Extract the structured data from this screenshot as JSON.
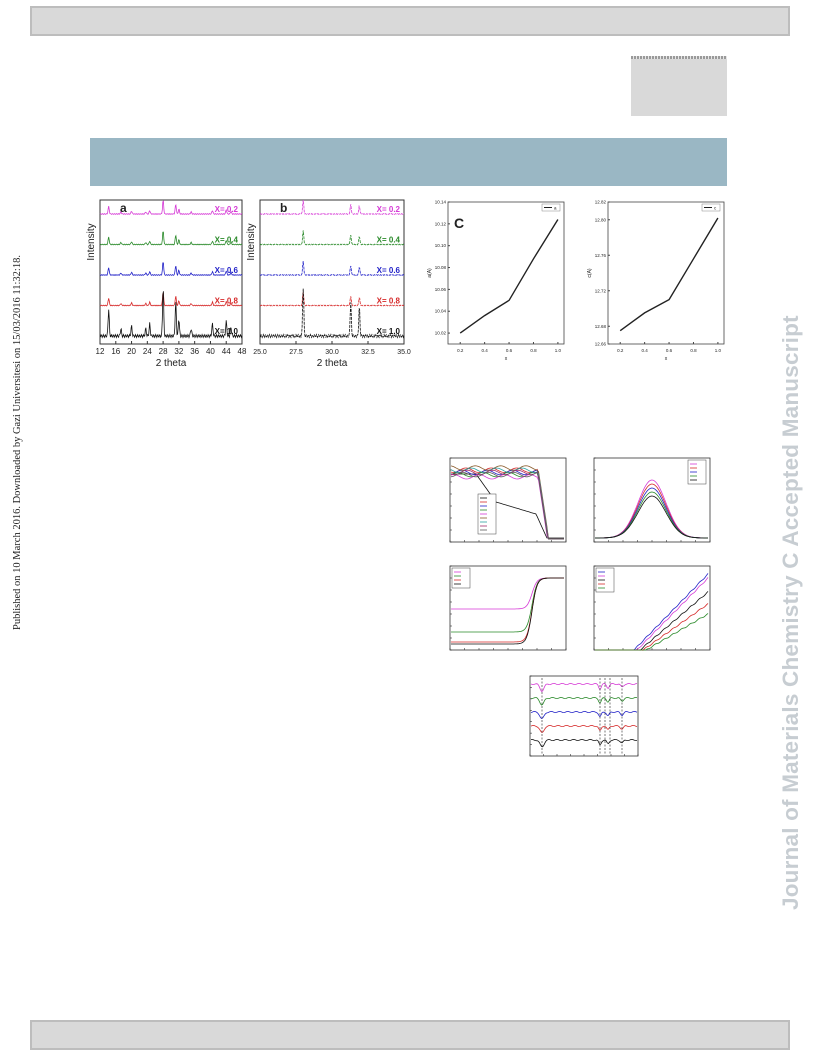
{
  "side_text": "Published on 10 March 2016. Downloaded by Gazi Universitesi on 15/03/2016 11:32:18.",
  "journal_watermark": "Journal of Materials Chemistry C Accepted Manuscript",
  "chart_data": [
    {
      "type": "line",
      "panel": "a",
      "xlabel": "2 theta",
      "ylabel": "Intensity",
      "xlim": [
        12,
        48
      ],
      "x_ticks": [
        "12",
        "16",
        "20",
        "24",
        "28",
        "32",
        "36",
        "40",
        "44",
        "48"
      ],
      "series": [
        {
          "name": "X= 0.2",
          "color": "#d63ad6"
        },
        {
          "name": "X= 0.4",
          "color": "#2a8a2a"
        },
        {
          "name": "X= 0.6",
          "color": "#2222c8"
        },
        {
          "name": "X= 0.8",
          "color": "#d62a2a"
        },
        {
          "name": "X= 1.0",
          "color": "#111111"
        }
      ],
      "peaks": [
        14.2,
        17.3,
        20.0,
        23.6,
        24.6,
        28.0,
        31.2,
        32.0,
        35.1,
        40.5,
        44.0,
        45.2
      ],
      "peak_heights": [
        0.55,
        0.15,
        0.2,
        0.15,
        0.25,
        1.0,
        0.7,
        0.35,
        0.15,
        0.25,
        0.3,
        0.18
      ]
    },
    {
      "type": "line",
      "panel": "b",
      "xlabel": "2 theta",
      "ylabel": "Intensity",
      "xlim": [
        25,
        35
      ],
      "x_ticks": [
        "25.0",
        "27.5",
        "30.0",
        "32.5",
        "35.0"
      ],
      "series": [
        {
          "name": "X= 0.2",
          "color": "#d63ad6"
        },
        {
          "name": "X= 0.4",
          "color": "#2a8a2a"
        },
        {
          "name": "X= 0.6",
          "color": "#2222c8"
        },
        {
          "name": "X= 0.8",
          "color": "#d62a2a"
        },
        {
          "name": "X= 1.0",
          "color": "#111111"
        }
      ],
      "peaks": [
        28.0,
        31.3,
        31.9
      ],
      "peak_heights": [
        1.0,
        0.7,
        0.6
      ]
    },
    {
      "type": "line",
      "panel": "C",
      "xlabel": "x",
      "ylabel": "a(A)",
      "xlim": [
        0.1,
        1.05
      ],
      "ylim": [
        10.01,
        10.14
      ],
      "x_ticks": [
        "0.2",
        "0.4",
        "0.6",
        "0.8",
        "1.0"
      ],
      "y_ticks": [
        "10.02",
        "10.04",
        "10.06",
        "10.08",
        "10.10",
        "10.12",
        "10.14"
      ],
      "x": [
        0.2,
        0.4,
        0.6,
        0.8,
        1.0
      ],
      "y": [
        10.02,
        10.036,
        10.05,
        10.088,
        10.124
      ],
      "legend_entry": "a"
    },
    {
      "type": "line",
      "panel": "c-right",
      "xlabel": "x",
      "ylabel": "c(A)",
      "xlim": [
        0.1,
        1.05
      ],
      "ylim": [
        12.66,
        12.82
      ],
      "x_ticks": [
        "0.2",
        "0.4",
        "0.6",
        "0.8",
        "1.0"
      ],
      "y_ticks": [
        "12.66",
        "12.68",
        "12.72",
        "12.76",
        "12.80",
        "12.82"
      ],
      "x": [
        0.2,
        0.4,
        0.6,
        0.8,
        1.0
      ],
      "y": [
        12.675,
        12.695,
        12.71,
        12.756,
        12.802
      ],
      "legend_entry": "c"
    },
    {
      "type": "line",
      "panel": "small-1",
      "series_colors": [
        "#111111",
        "#d62a2a",
        "#2222c8",
        "#2a8a2a",
        "#d63ad6",
        "#8a5a2a",
        "#2aa0a0",
        "#a02a6a",
        "#5a5a5a"
      ]
    },
    {
      "type": "line",
      "panel": "small-2",
      "series_colors": [
        "#d63ad6",
        "#d62a2a",
        "#2222c8",
        "#2a8a2a",
        "#111111"
      ]
    },
    {
      "type": "line",
      "panel": "small-3",
      "series_colors": [
        "#d63ad6",
        "#2a8a2a",
        "#d62a2a",
        "#111111"
      ]
    },
    {
      "type": "line",
      "panel": "small-4",
      "series_colors": [
        "#2222c8",
        "#d63ad6",
        "#111111",
        "#d62a2a",
        "#2a8a2a"
      ]
    },
    {
      "type": "line",
      "panel": "small-5",
      "series_colors": [
        "#d63ad6",
        "#2a8a2a",
        "#2222c8",
        "#d62a2a",
        "#111111"
      ]
    }
  ]
}
